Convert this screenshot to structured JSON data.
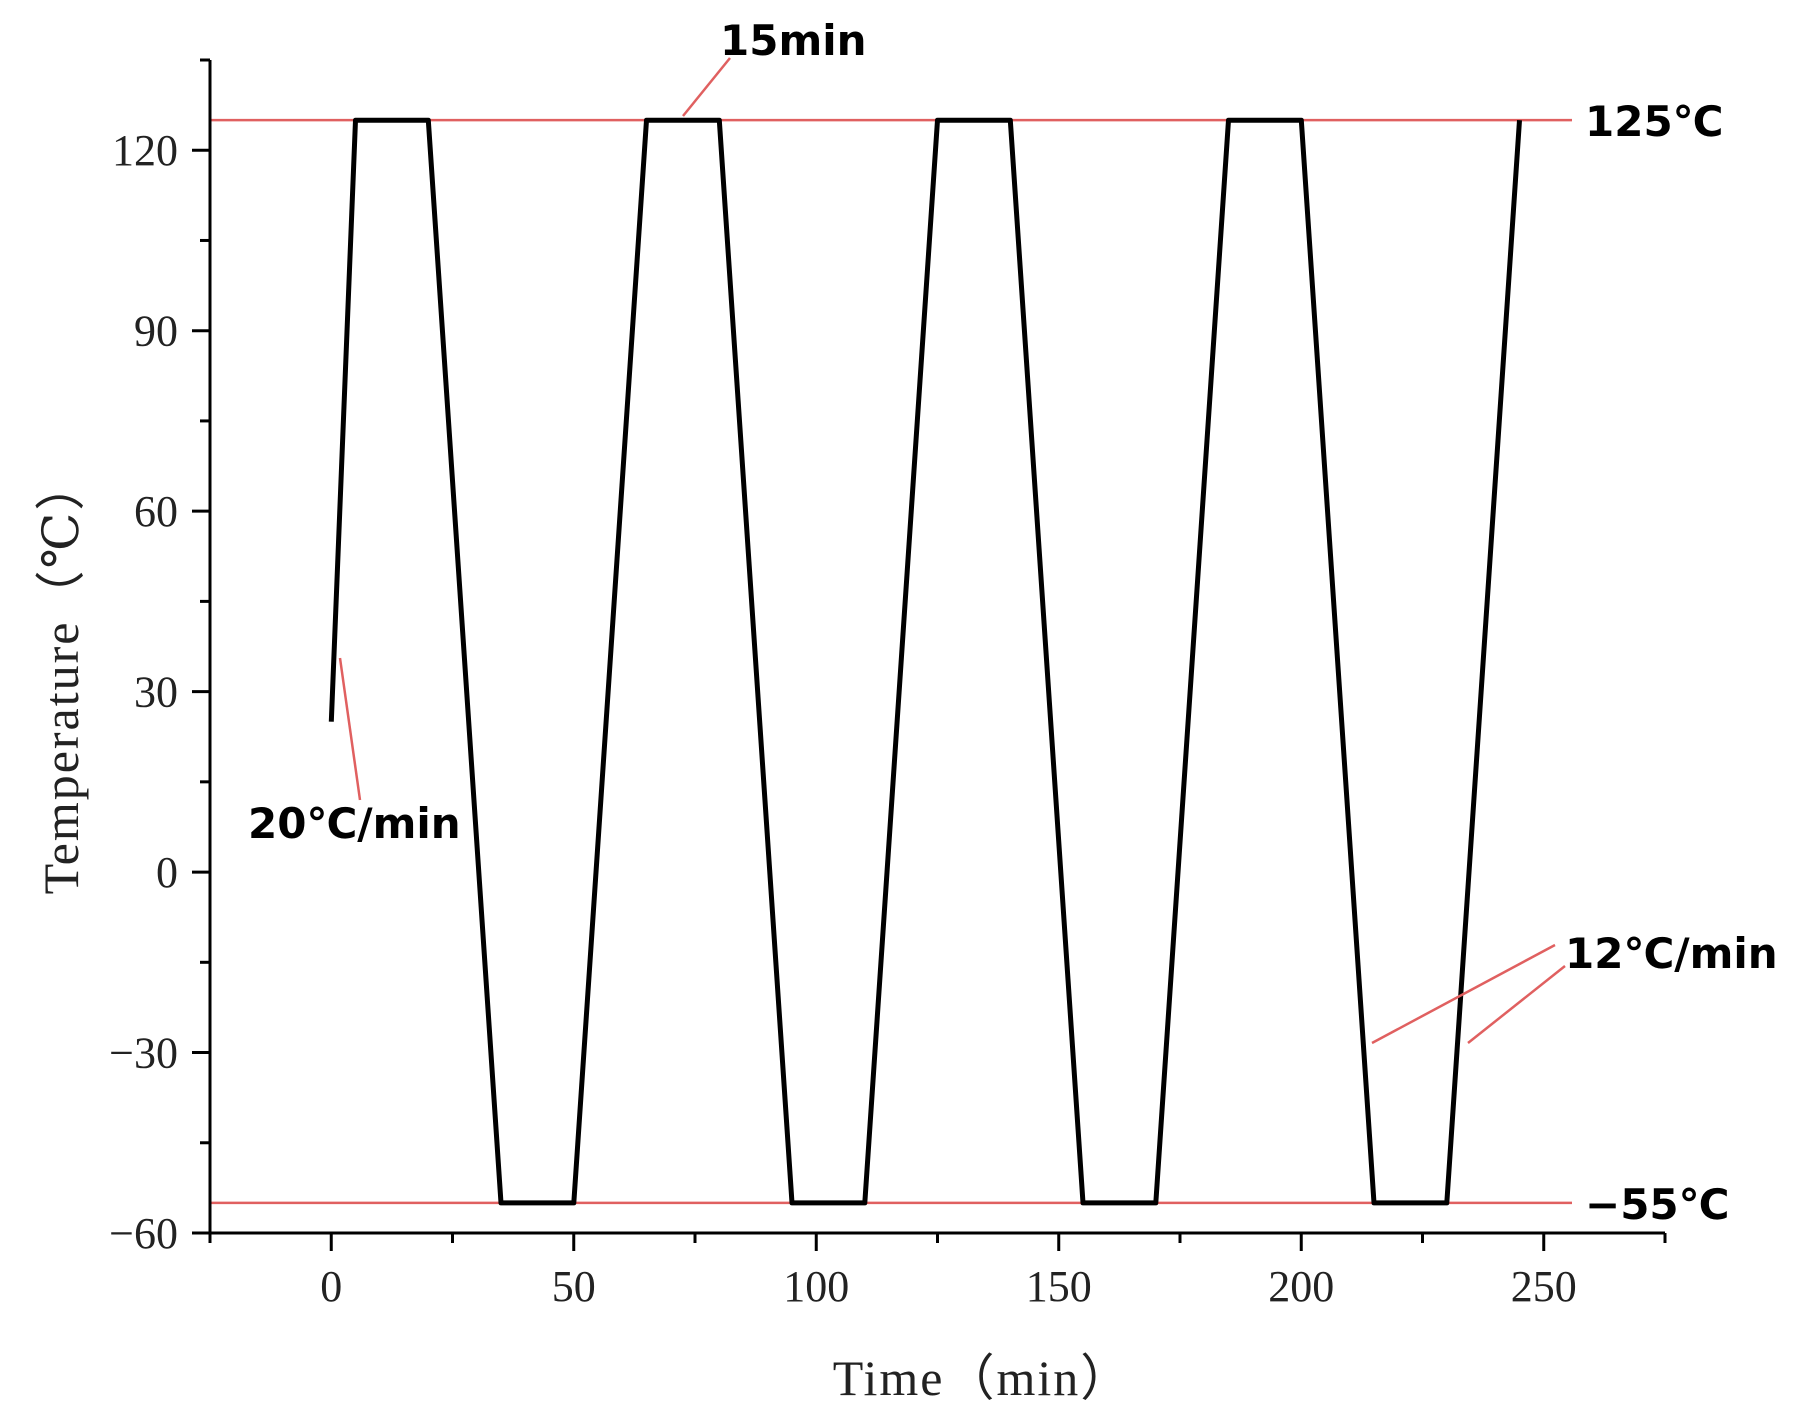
{
  "chart_data": {
    "type": "line",
    "xlabel": "Time（min）",
    "ylabel": "Temperature（℃）",
    "xlim": [
      -25,
      275
    ],
    "ylim": [
      -60,
      135
    ],
    "xticks": [
      0,
      50,
      100,
      150,
      200,
      250
    ],
    "xtick_labels": [
      "0",
      "50",
      "100",
      "150",
      "200",
      "250"
    ],
    "yticks": [
      -60,
      -30,
      0,
      30,
      60,
      90,
      120
    ],
    "ytick_labels": [
      "−60",
      "−30",
      "0",
      "30",
      "60",
      "90",
      "120"
    ],
    "grid": false,
    "series": [
      {
        "color": "#000000",
        "x": [
          0,
          5,
          20,
          35,
          50,
          65,
          80,
          95,
          110,
          125,
          140,
          155,
          170,
          185,
          200,
          215,
          230,
          245
        ],
        "y": [
          25,
          125,
          125,
          -55,
          -55,
          125,
          125,
          -55,
          -55,
          125,
          125,
          -55,
          -55,
          125,
          125,
          -55,
          -55,
          125
        ]
      }
    ],
    "reference_lines": [
      {
        "y": 125,
        "color": "#e06060",
        "label": "125℃"
      },
      {
        "y": -55,
        "color": "#e06060",
        "label": "−55℃"
      }
    ],
    "annotations": [
      {
        "text": "15min"
      },
      {
        "text": "20℃/min"
      },
      {
        "text": "12℃/min"
      }
    ]
  }
}
